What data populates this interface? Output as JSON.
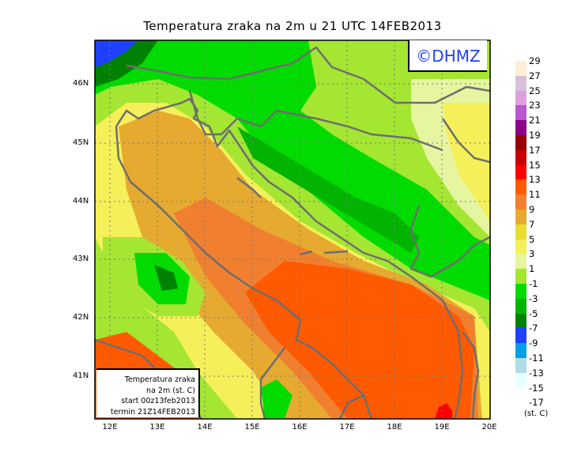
{
  "title": "Temperatura zraka na 2m u 21 UTC 14FEB2013",
  "logo": "©DHMZ",
  "info_box": [
    "Temperatura zraka",
    "na 2m (st. C)",
    "start 00z13feb2013",
    "termin 21Z14FEB2013"
  ],
  "lat_ticks": [
    "46N",
    "45N",
    "44N",
    "43N",
    "42N",
    "41N"
  ],
  "lon_ticks": [
    "12E",
    "13E",
    "14E",
    "15E",
    "16E",
    "17E",
    "18E",
    "19E",
    "20E"
  ],
  "legend": {
    "labels": [
      "29",
      "27",
      "25",
      "23",
      "21",
      "19",
      "17",
      "15",
      "13",
      "11",
      "9",
      "7",
      "5",
      "3",
      "1",
      "-1",
      "-3",
      "-5",
      "-7",
      "-9",
      "-11",
      "-13",
      "-15",
      "-17"
    ],
    "colors": [
      "#ffeed8",
      "#d8c0d8",
      "#dca0dc",
      "#b858d0",
      "#8c008c",
      "#960000",
      "#c80000",
      "#ff0000",
      "#ff5a00",
      "#f08030",
      "#e6aa30",
      "#e6dc32",
      "#f5f05a",
      "#e6f5a0",
      "#a4e632",
      "#00dc00",
      "#00b400",
      "#008200",
      "#2040ff",
      "#00a0e6",
      "#b0dce6",
      "#e8ffff"
    ],
    "units": "(st. C)"
  }
}
